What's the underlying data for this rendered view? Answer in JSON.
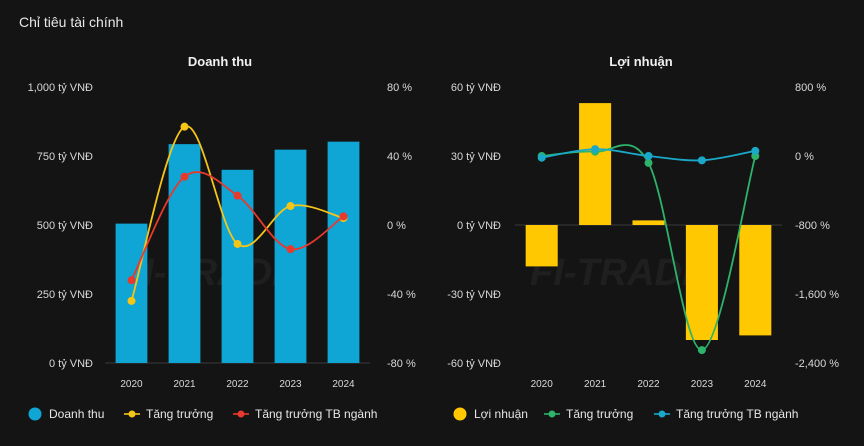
{
  "panel": {
    "title": "Chỉ tiêu tài chính"
  },
  "watermark": {
    "text": "FI-TRADE"
  },
  "chart_data": [
    {
      "type": "bar",
      "title": "Doanh thu",
      "categories": [
        "2020",
        "2021",
        "2022",
        "2023",
        "2024"
      ],
      "ylim": [
        0,
        1000
      ],
      "yticks": [
        0,
        250,
        500,
        750,
        1000
      ],
      "ytick_labels": [
        "0 tỷ VNĐ",
        "250 tỷ VNĐ",
        "500 tỷ VNĐ",
        "750 tỷ VNĐ",
        "1,000 tỷ VNĐ"
      ],
      "y2lim": [
        -80,
        80
      ],
      "y2ticks": [
        -80,
        -40,
        0,
        40,
        80
      ],
      "y2tick_labels": [
        "-80 %",
        "-40 %",
        "0 %",
        "40 %",
        "80 %"
      ],
      "series": [
        {
          "name": "Doanh thu",
          "kind": "bar",
          "axis": "left",
          "color": "#0fa5d4",
          "values": [
            505,
            793,
            700,
            773,
            802
          ]
        },
        {
          "name": "Tăng trưởng",
          "kind": "line",
          "axis": "right",
          "color": "#f5c518",
          "values": [
            -44,
            57,
            -11,
            11,
            4
          ]
        },
        {
          "name": "Tăng trưởng TB ngành",
          "kind": "line",
          "axis": "right",
          "color": "#e8392c",
          "values": [
            -32,
            28,
            17,
            -14,
            5
          ]
        }
      ],
      "legend": "bottom"
    },
    {
      "type": "bar",
      "title": "Lợi nhuận",
      "categories": [
        "2020",
        "2021",
        "2022",
        "2023",
        "2024"
      ],
      "ylim": [
        -60,
        60
      ],
      "yticks": [
        -60,
        -30,
        0,
        30,
        60
      ],
      "ytick_labels": [
        "-60 tỷ VNĐ",
        "-30 tỷ VNĐ",
        "0 tỷ VNĐ",
        "30 tỷ VNĐ",
        "60 tỷ VNĐ"
      ],
      "y2lim": [
        -2400,
        800
      ],
      "y2ticks": [
        -2400,
        -1600,
        -800,
        0,
        800
      ],
      "y2tick_labels": [
        "-2,400 %",
        "-1,600 %",
        "-800 %",
        "0 %",
        "800 %"
      ],
      "series": [
        {
          "name": "Lợi nhuận",
          "kind": "bar",
          "axis": "left",
          "color": "#ffc800",
          "values": [
            -18,
            53,
            2,
            -50,
            -48
          ]
        },
        {
          "name": "Tăng trưởng",
          "kind": "line",
          "axis": "right",
          "color": "#2db36a",
          "values": [
            0,
            50,
            -80,
            -2250,
            0
          ]
        },
        {
          "name": "Tăng trưởng TB ngành",
          "kind": "line",
          "axis": "right",
          "color": "#1aa8c8",
          "values": [
            -20,
            80,
            0,
            -50,
            60
          ]
        }
      ],
      "legend": "bottom"
    }
  ]
}
